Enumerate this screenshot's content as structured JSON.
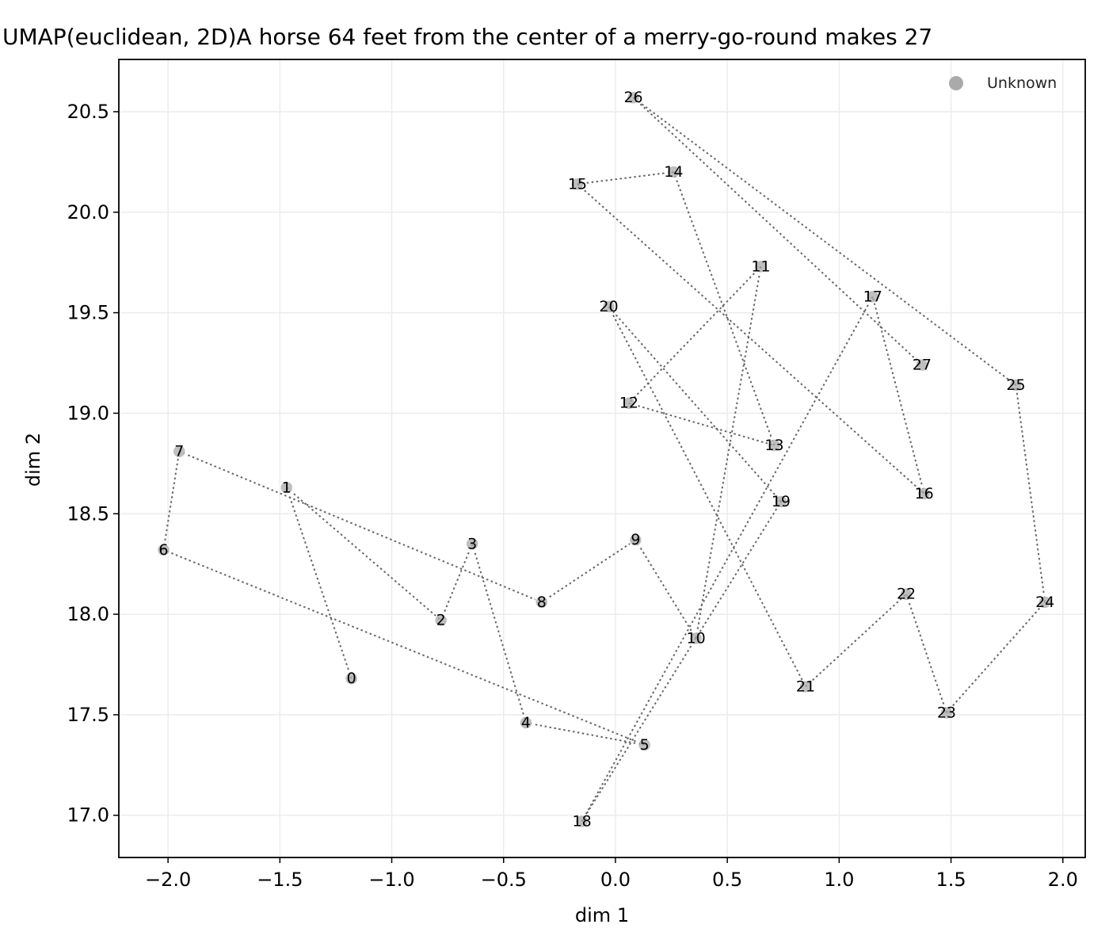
{
  "chart_data": {
    "type": "scatter",
    "title": "UMAP(euclidean, 2D)A horse 64 feet from the center of a merry-go-round makes 27",
    "xlabel": "dim 1",
    "ylabel": "dim 2",
    "xlim": [
      -2.22,
      2.1
    ],
    "ylim": [
      16.79,
      20.76
    ],
    "xticks": [
      -2.0,
      -1.5,
      -1.0,
      -0.5,
      0.0,
      0.5,
      1.0,
      1.5,
      2.0
    ],
    "xtick_labels": [
      "−2.0",
      "−1.5",
      "−1.0",
      "−0.5",
      "0.0",
      "0.5",
      "1.0",
      "1.5",
      "2.0"
    ],
    "yticks": [
      17.0,
      17.5,
      18.0,
      18.5,
      19.0,
      19.5,
      20.0,
      20.5
    ],
    "ytick_labels": [
      "17.0",
      "17.5",
      "18.0",
      "18.5",
      "19.0",
      "19.5",
      "20.0",
      "20.5"
    ],
    "grid": true,
    "connect_in_order": true,
    "legend": {
      "position": "top-right",
      "entries": [
        {
          "label": "Unknown",
          "color": "#aaaaaa"
        }
      ]
    },
    "colors": {
      "point": "#aaaaaa",
      "line": "#666666",
      "grid": "#ececec"
    },
    "points": [
      {
        "label": "0",
        "x": -1.18,
        "y": 17.68
      },
      {
        "label": "1",
        "x": -1.47,
        "y": 18.63
      },
      {
        "label": "2",
        "x": -0.78,
        "y": 17.97
      },
      {
        "label": "3",
        "x": -0.64,
        "y": 18.35
      },
      {
        "label": "4",
        "x": -0.4,
        "y": 17.46
      },
      {
        "label": "5",
        "x": 0.13,
        "y": 17.35
      },
      {
        "label": "6",
        "x": -2.02,
        "y": 18.32
      },
      {
        "label": "7",
        "x": -1.95,
        "y": 18.81
      },
      {
        "label": "8",
        "x": -0.33,
        "y": 18.06
      },
      {
        "label": "9",
        "x": 0.09,
        "y": 18.37
      },
      {
        "label": "10",
        "x": 0.36,
        "y": 17.88
      },
      {
        "label": "11",
        "x": 0.65,
        "y": 19.73
      },
      {
        "label": "12",
        "x": 0.06,
        "y": 19.05
      },
      {
        "label": "13",
        "x": 0.71,
        "y": 18.84
      },
      {
        "label": "14",
        "x": 0.26,
        "y": 20.2
      },
      {
        "label": "15",
        "x": -0.17,
        "y": 20.14
      },
      {
        "label": "16",
        "x": 1.38,
        "y": 18.6
      },
      {
        "label": "17",
        "x": 1.15,
        "y": 19.58
      },
      {
        "label": "18",
        "x": -0.15,
        "y": 16.97
      },
      {
        "label": "19",
        "x": 0.74,
        "y": 18.56
      },
      {
        "label": "20",
        "x": -0.03,
        "y": 19.53
      },
      {
        "label": "21",
        "x": 0.85,
        "y": 17.64
      },
      {
        "label": "22",
        "x": 1.3,
        "y": 18.1
      },
      {
        "label": "23",
        "x": 1.48,
        "y": 17.51
      },
      {
        "label": "24",
        "x": 1.92,
        "y": 18.06
      },
      {
        "label": "25",
        "x": 1.79,
        "y": 19.14
      },
      {
        "label": "26",
        "x": 0.08,
        "y": 20.57
      },
      {
        "label": "27",
        "x": 1.37,
        "y": 19.24
      }
    ]
  }
}
